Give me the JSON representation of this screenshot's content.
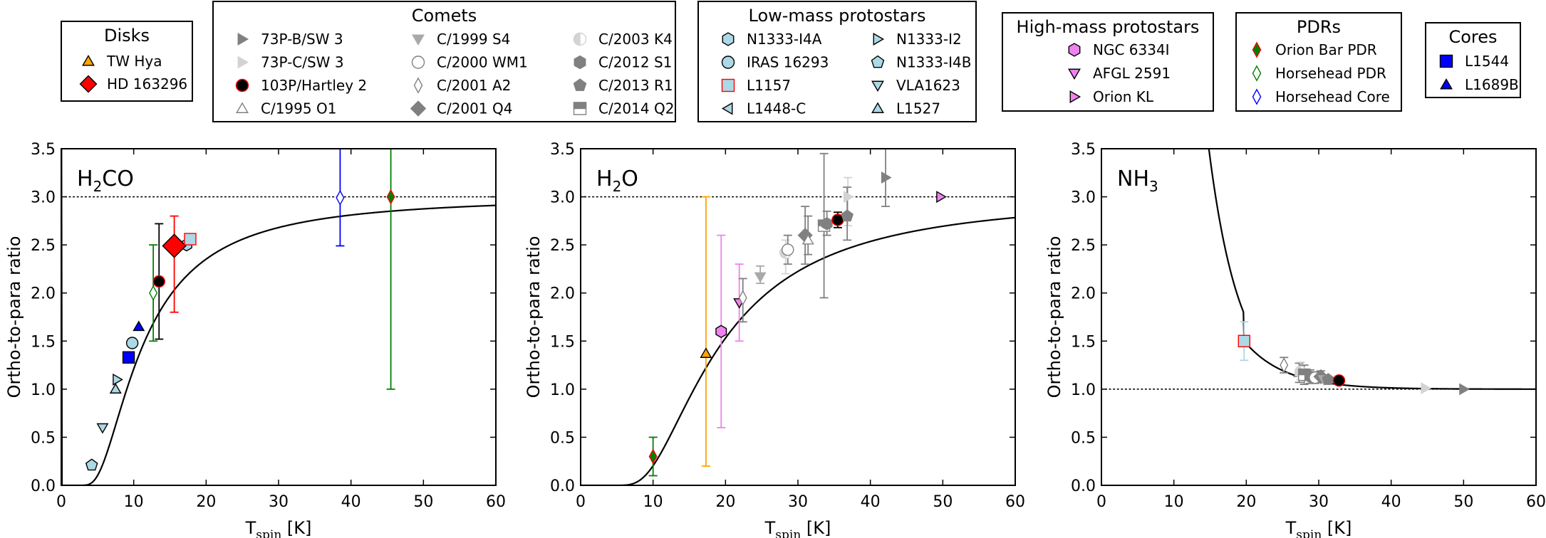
{
  "legend_groups": [
    {
      "title": "Disks",
      "entries": [
        {
          "label": "TW Hya",
          "marker": "triangle-up",
          "face": "#ffa500",
          "edge": "#000000"
        },
        {
          "label": "HD 163296",
          "marker": "diamond-big",
          "face": "#ff0000",
          "edge": "#000000"
        }
      ]
    },
    {
      "title": "Comets",
      "entries": [
        {
          "label": "73P-B/SW 3",
          "marker": "triangle-right",
          "face": "#808080",
          "edge": "#808080"
        },
        {
          "label": "73P-C/SW 3",
          "marker": "triangle-right",
          "face": "#d3d3d3",
          "edge": "#d3d3d3"
        },
        {
          "label": "103P/Hartley 2",
          "marker": "circle",
          "face": "#000000",
          "edge": "#ff0000"
        },
        {
          "label": "C/1995 O1",
          "marker": "triangle-up",
          "face": "#ffffff",
          "edge": "#808080"
        },
        {
          "label": "C/1999 S4",
          "marker": "triangle-down",
          "face": "#a9a9a9",
          "edge": "#a9a9a9"
        },
        {
          "label": "C/2000 WM1",
          "marker": "circle",
          "face": "#ffffff",
          "edge": "#808080"
        },
        {
          "label": "C/2001 A2",
          "marker": "thin-diamond",
          "face": "#ffffff",
          "edge": "#808080"
        },
        {
          "label": "C/2001 Q4",
          "marker": "diamond",
          "face": "#808080",
          "edge": "#808080"
        },
        {
          "label": "C/2003 K4",
          "marker": "circle-half",
          "face": "#d3d3d3",
          "edge": "#d3d3d3"
        },
        {
          "label": "C/2012 S1",
          "marker": "hexagon",
          "face": "#808080",
          "edge": "#808080"
        },
        {
          "label": "C/2013 R1",
          "marker": "pentagon",
          "face": "#808080",
          "edge": "#808080"
        },
        {
          "label": "C/2014 Q2",
          "marker": "square-half",
          "face": "#808080",
          "edge": "#808080"
        }
      ]
    },
    {
      "title": "Low-mass protostars",
      "entries": [
        {
          "label": "N1333-I4A",
          "marker": "hexagon",
          "face": "#add8e6",
          "edge": "#000000"
        },
        {
          "label": "IRAS 16293",
          "marker": "circle",
          "face": "#add8e6",
          "edge": "#000000"
        },
        {
          "label": "L1157",
          "marker": "square",
          "face": "#add8e6",
          "edge": "#ff0000"
        },
        {
          "label": "L1448-C",
          "marker": "triangle-left",
          "face": "#add8e6",
          "edge": "#000000"
        },
        {
          "label": "N1333-I2",
          "marker": "triangle-right",
          "face": "#add8e6",
          "edge": "#000000"
        },
        {
          "label": "N1333-I4B",
          "marker": "pentagon",
          "face": "#add8e6",
          "edge": "#000000"
        },
        {
          "label": "VLA1623",
          "marker": "triangle-down",
          "face": "#add8e6",
          "edge": "#000000"
        },
        {
          "label": "L1527",
          "marker": "triangle-up",
          "face": "#add8e6",
          "edge": "#000000"
        }
      ]
    },
    {
      "title": "High-mass protostars",
      "entries": [
        {
          "label": "NGC 6334I",
          "marker": "hexagon",
          "face": "#ee82ee",
          "edge": "#000000"
        },
        {
          "label": "AFGL 2591",
          "marker": "triangle-down",
          "face": "#ee82ee",
          "edge": "#000000"
        },
        {
          "label": "Orion KL",
          "marker": "triangle-right",
          "face": "#ee82ee",
          "edge": "#000000"
        }
      ]
    },
    {
      "title": "PDRs",
      "entries": [
        {
          "label": "Orion Bar PDR",
          "marker": "thin-diamond",
          "face": "#008000",
          "edge": "#ff0000"
        },
        {
          "label": "Horsehead PDR",
          "marker": "thin-diamond",
          "face": "#ffffff",
          "edge": "#008000"
        },
        {
          "label": "Horsehead Core",
          "marker": "thin-diamond",
          "face": "#ffffff",
          "edge": "#0000ff"
        }
      ]
    },
    {
      "title": "Cores",
      "entries": [
        {
          "label": "L1544",
          "marker": "square",
          "face": "#0000ff",
          "edge": "#000000"
        },
        {
          "label": "L1689B",
          "marker": "triangle-up",
          "face": "#0000ff",
          "edge": "#000000"
        }
      ]
    }
  ],
  "chart_data": [
    {
      "type": "scatter",
      "title": "",
      "molecule": "H",
      "molecule_sub": "2",
      "molecule_tail": "CO",
      "xlabel": "T",
      "xlabel_sub": "spin",
      "xlabel_unit": " [K]",
      "ylabel": "Ortho-to-para ratio",
      "xlim": [
        0,
        60
      ],
      "ylim": [
        0.0,
        3.5
      ],
      "xticks": [
        "0",
        "10",
        "20",
        "30",
        "40",
        "50",
        "60"
      ],
      "yticks": [
        "0.0",
        "0.5",
        "1.0",
        "1.5",
        "2.0",
        "2.5",
        "3.0",
        "3.5"
      ],
      "reference_line": 3.0,
      "curve": "h2co",
      "points": [
        {
          "source": "N1333-I4B",
          "x": 4.2,
          "y": 0.21
        },
        {
          "source": "VLA1623",
          "x": 5.7,
          "y": 0.6
        },
        {
          "source": "N1333-I2",
          "x": 7.7,
          "y": 1.1
        },
        {
          "source": "L1527",
          "x": 7.5,
          "y": 1.0
        },
        {
          "source": "L1544",
          "x": 9.3,
          "y": 1.33
        },
        {
          "source": "IRAS 16293",
          "x": 9.8,
          "y": 1.48
        },
        {
          "source": "L1689B",
          "x": 10.7,
          "y": 1.65
        },
        {
          "source": "Horsehead PDR",
          "x": 12.7,
          "y": 2.0,
          "yerr": [
            1.5,
            2.5
          ]
        },
        {
          "source": "103P/Hartley 2",
          "x": 13.5,
          "y": 2.12,
          "yerr": [
            1.52,
            2.72
          ]
        },
        {
          "source": "N1333-I4A",
          "x": 17.3,
          "y": 2.5
        },
        {
          "source": "HD 163296",
          "x": 15.6,
          "y": 2.49,
          "yerr": [
            1.8,
            2.8
          ]
        },
        {
          "source": "L1157",
          "x": 17.8,
          "y": 2.56
        },
        {
          "source": "Horsehead Core",
          "x": 38.5,
          "y": 2.99,
          "yerr": [
            2.49,
            3.5
          ]
        },
        {
          "source": "Orion Bar PDR",
          "x": 45.5,
          "y": 3.0,
          "yerr": [
            1.0,
            3.5
          ]
        }
      ]
    },
    {
      "type": "scatter",
      "title": "",
      "molecule": "H",
      "molecule_sub": "2",
      "molecule_tail": "O",
      "xlabel": "T",
      "xlabel_sub": "spin",
      "xlabel_unit": " [K]",
      "ylabel": "Ortho-to-para ratio",
      "xlim": [
        0,
        60
      ],
      "ylim": [
        0.0,
        3.5
      ],
      "xticks": [
        "0",
        "10",
        "20",
        "30",
        "40",
        "50",
        "60"
      ],
      "yticks": [
        "0.0",
        "0.5",
        "1.0",
        "1.5",
        "2.0",
        "2.5",
        "3.0",
        "3.5"
      ],
      "reference_line": 3.0,
      "curve": "h2o",
      "points": [
        {
          "source": "Orion Bar PDR",
          "x": 10.0,
          "y": 0.3,
          "yerr": [
            0.1,
            0.5
          ]
        },
        {
          "source": "TW Hya",
          "x": 17.3,
          "y": 1.37,
          "yerr": [
            0.2,
            3.0
          ]
        },
        {
          "source": "NGC 6334I",
          "x": 19.4,
          "y": 1.6,
          "yerr": [
            0.6,
            2.6
          ]
        },
        {
          "source": "AFGL 2591",
          "x": 21.9,
          "y": 1.9,
          "yerr": [
            1.5,
            2.3
          ]
        },
        {
          "source": "C/2001 A2",
          "x": 22.4,
          "y": 1.95,
          "yerr": [
            1.7,
            2.15
          ]
        },
        {
          "source": "C/1999 S4",
          "x": 24.8,
          "y": 2.17,
          "yerr": [
            2.1,
            2.28
          ]
        },
        {
          "source": "C/2003 K4",
          "x": 28.3,
          "y": 2.42,
          "yerr": [
            2.2,
            2.55
          ]
        },
        {
          "source": "C/2000 WM1",
          "x": 28.6,
          "y": 2.45,
          "yerr": [
            2.3,
            2.6
          ]
        },
        {
          "source": "C/2001 Q4",
          "x": 31.0,
          "y": 2.6,
          "yerr": [
            2.3,
            2.9
          ]
        },
        {
          "source": "C/1995 O1",
          "x": 31.4,
          "y": 2.55,
          "yerr": [
            2.4,
            2.8
          ]
        },
        {
          "source": "C/2014 Q2",
          "x": 33.6,
          "y": 2.7,
          "yerr": [
            1.95,
            3.45
          ]
        },
        {
          "source": "C/2012 S1",
          "x": 34.0,
          "y": 2.72,
          "yerr": [
            2.6,
            2.85
          ]
        },
        {
          "source": "103P/Hartley 2",
          "x": 35.5,
          "y": 2.76,
          "yerr": [
            2.68,
            2.84
          ]
        },
        {
          "source": "73P-C/SW 3",
          "x": 36.9,
          "y": 3.0,
          "yerr": [
            2.7,
            3.2
          ]
        },
        {
          "source": "C/2013 R1",
          "x": 36.8,
          "y": 2.8,
          "yerr": [
            2.55,
            3.1
          ]
        },
        {
          "source": "73P-B/SW 3",
          "x": 42.1,
          "y": 3.2,
          "yerr": [
            2.9,
            3.5
          ]
        },
        {
          "source": "Orion KL",
          "x": 49.7,
          "y": 3.0
        }
      ]
    },
    {
      "type": "scatter",
      "title": "",
      "molecule": "NH",
      "molecule_sub": "3",
      "molecule_tail": "",
      "xlabel": "T",
      "xlabel_sub": "spin",
      "xlabel_unit": " [K]",
      "ylabel": "Ortho-to-para ratio",
      "xlim": [
        0,
        60
      ],
      "ylim": [
        0.0,
        3.5
      ],
      "xticks": [
        "0",
        "10",
        "20",
        "30",
        "40",
        "50",
        "60"
      ],
      "yticks": [
        "0.0",
        "0.5",
        "1.0",
        "1.5",
        "2.0",
        "2.5",
        "3.0",
        "3.5"
      ],
      "reference_line": 1.0,
      "curve": "nh3",
      "points": [
        {
          "source": "L1157",
          "x": 19.7,
          "y": 1.5,
          "yerr": [
            1.3,
            1.7
          ]
        },
        {
          "source": "C/2001 A2",
          "x": 25.2,
          "y": 1.25,
          "yerr": [
            1.17,
            1.33
          ]
        },
        {
          "source": "C/1995 O1",
          "x": 27.3,
          "y": 1.17,
          "yerr": [
            1.07,
            1.27
          ]
        },
        {
          "source": "C/2003 K4",
          "x": 27.5,
          "y": 1.18,
          "yerr": [
            1.1,
            1.28
          ]
        },
        {
          "source": "C/2014 Q2",
          "x": 28.0,
          "y": 1.15,
          "yerr": [
            1.05,
            1.25
          ]
        },
        {
          "source": "C/2012 S1",
          "x": 28.8,
          "y": 1.13,
          "yerr": [
            1.06,
            1.2
          ]
        },
        {
          "source": "C/2000 WM1",
          "x": 29.5,
          "y": 1.12,
          "yerr": [
            1.06,
            1.18
          ]
        },
        {
          "source": "C/2001 Q4",
          "x": 30.3,
          "y": 1.13,
          "yerr": [
            1.07,
            1.19
          ]
        },
        {
          "source": "C/1999 S4",
          "x": 30.7,
          "y": 1.1
        },
        {
          "source": "C/2013 R1",
          "x": 31.3,
          "y": 1.1
        },
        {
          "source": "103P/Hartley 2",
          "x": 32.8,
          "y": 1.09
        },
        {
          "source": "73P-C/SW 3",
          "x": 44.7,
          "y": 1.01
        },
        {
          "source": "73P-B/SW 3",
          "x": 50.0,
          "y": 1.0
        }
      ]
    }
  ]
}
